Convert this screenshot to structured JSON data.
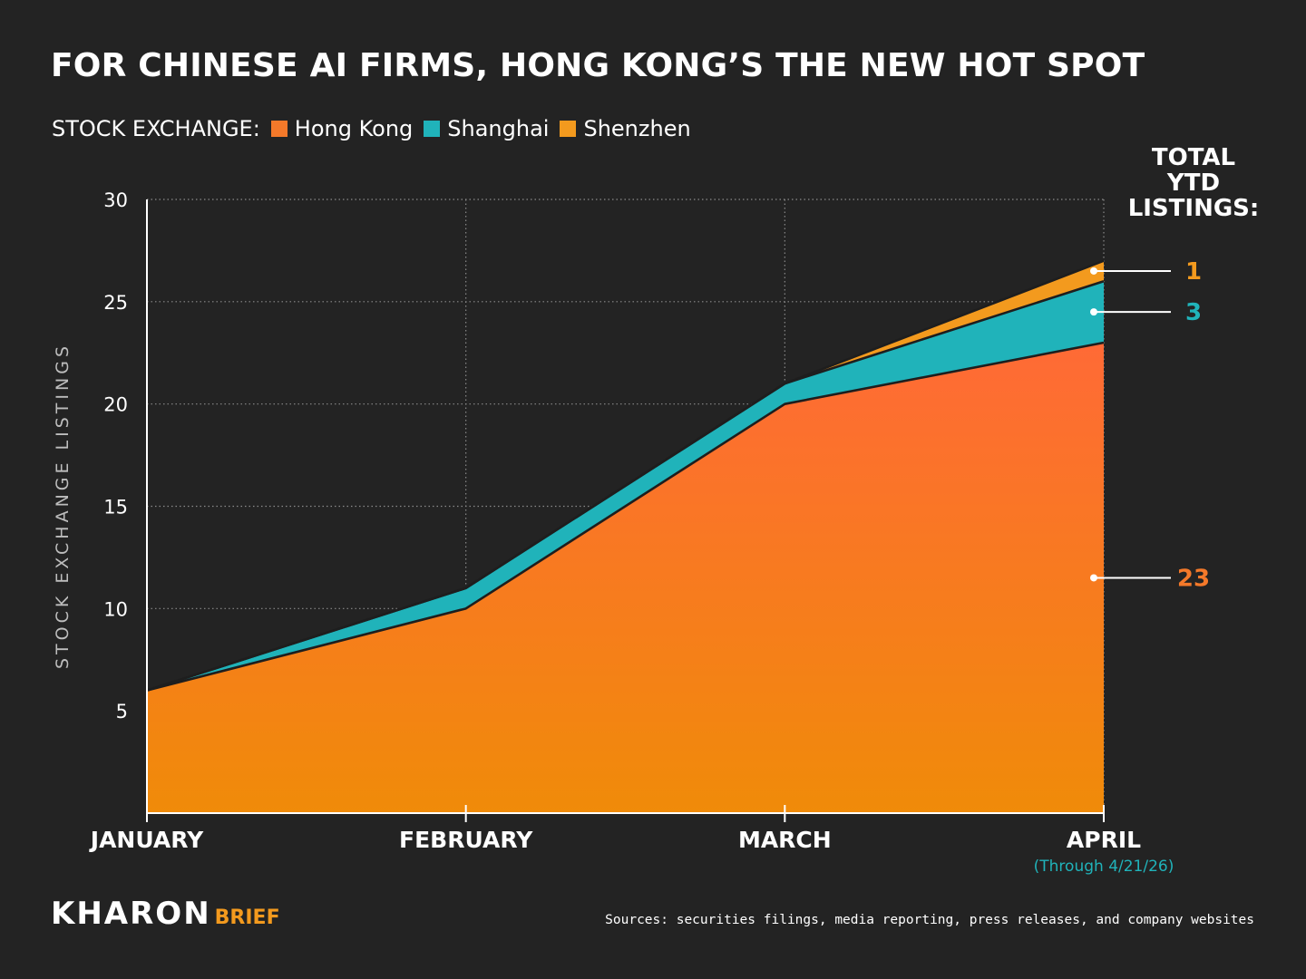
{
  "title": "FOR CHINESE AI FIRMS, HONG KONG’S THE NEW HOT SPOT",
  "legend": {
    "label": "STOCK EXCHANGE:",
    "items": [
      {
        "name": "Hong Kong",
        "color": "#f4792a"
      },
      {
        "name": "Shanghai",
        "color": "#20b3ba"
      },
      {
        "name": "Shenzhen",
        "color": "#f39a1e"
      }
    ]
  },
  "chart_data": {
    "type": "area",
    "stacked": true,
    "categories": [
      "JANUARY",
      "FEBRUARY",
      "MARCH",
      "APRIL"
    ],
    "category_note": "(Through 4/21/26)",
    "series": [
      {
        "name": "Hong Kong",
        "values": [
          6,
          10,
          20,
          23
        ],
        "color": "#f4792a"
      },
      {
        "name": "Shanghai",
        "values": [
          0,
          1,
          1,
          3
        ],
        "color": "#20b3ba"
      },
      {
        "name": "Shenzhen",
        "values": [
          0,
          0,
          0,
          1
        ],
        "color": "#f39a1e"
      }
    ],
    "ylabel": "STOCK EXCHANGE LISTINGS",
    "ylim": [
      0,
      30
    ],
    "yticks": [
      5,
      10,
      15,
      20,
      25,
      30
    ],
    "grid": true,
    "totals_label": [
      "TOTAL",
      "YTD",
      "LISTINGS:"
    ],
    "totals": [
      {
        "series": "Shenzhen",
        "value": "1",
        "color": "#f39a1e"
      },
      {
        "series": "Shanghai",
        "value": "3",
        "color": "#20b3ba"
      },
      {
        "series": "Hong Kong",
        "value": "23",
        "color": "#f4792a"
      }
    ]
  },
  "logo": {
    "main": "KHARON",
    "accent": "BRIEF"
  },
  "sources": "Sources: securities filings, media reporting, press releases, and company websites"
}
